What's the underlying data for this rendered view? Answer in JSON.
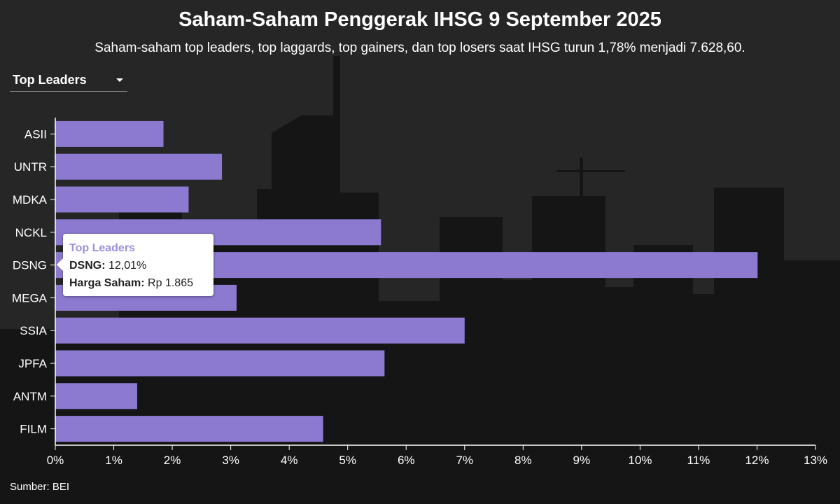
{
  "header": {
    "title": "Saham-Saham Penggerak IHSG 9 September 2025",
    "subtitle": "Saham-saham top leaders, top laggards, top gainers, dan top losers saat IHSG turun 1,78% menjadi 7.628,60."
  },
  "dropdown": {
    "selected": "Top Leaders"
  },
  "tooltip": {
    "title": "Top Leaders",
    "ticker": "DSNG:",
    "value": "12,01%",
    "price_label": "Harga Saham:",
    "price_value": "Rp 1.865"
  },
  "source": "Sumber: BEI",
  "colors": {
    "bar": "#8c7ad0",
    "background": "#262626",
    "text": "#ffffff"
  },
  "chart_data": {
    "type": "bar",
    "orientation": "horizontal",
    "categories": [
      "ASII",
      "UNTR",
      "MDKA",
      "NCKL",
      "DSNG",
      "MEGA",
      "SSIA",
      "JPFA",
      "ANTM",
      "FILM"
    ],
    "values": [
      1.85,
      2.85,
      2.28,
      5.57,
      12.01,
      3.1,
      7.0,
      5.63,
      1.4,
      4.58
    ],
    "xlim": [
      0,
      13
    ],
    "xticks": [
      "0%",
      "1%",
      "2%",
      "3%",
      "4%",
      "5%",
      "6%",
      "7%",
      "8%",
      "9%",
      "10%",
      "11%",
      "12%",
      "13%"
    ],
    "grid": false,
    "legend": "none"
  }
}
